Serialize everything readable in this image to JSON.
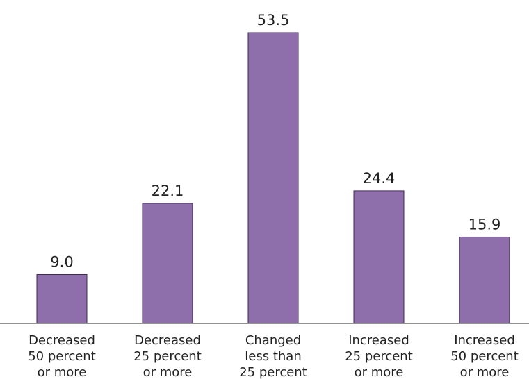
{
  "chart_data": {
    "type": "bar",
    "title": "",
    "xlabel": "",
    "ylabel": "",
    "categories": [
      [
        "Decreased",
        "50 percent",
        "or more"
      ],
      [
        "Decreased",
        "25 percent",
        "or more"
      ],
      [
        "Changed",
        "less than",
        "25 percent"
      ],
      [
        "Increased",
        "25 percent",
        "or more"
      ],
      [
        "Increased",
        "50 percent",
        "or more"
      ]
    ],
    "values": [
      9.0,
      22.1,
      53.5,
      24.4,
      15.9
    ],
    "value_labels": [
      "9.0",
      "22.1",
      "53.5",
      "24.4",
      "15.9"
    ],
    "ylim": [
      0,
      53.5
    ],
    "grid": false,
    "legend": "none",
    "colors": {
      "bar_fill": "#8f6fab",
      "bar_stroke": "#3d2a52",
      "text": "#222222",
      "axis": "#555555"
    }
  }
}
